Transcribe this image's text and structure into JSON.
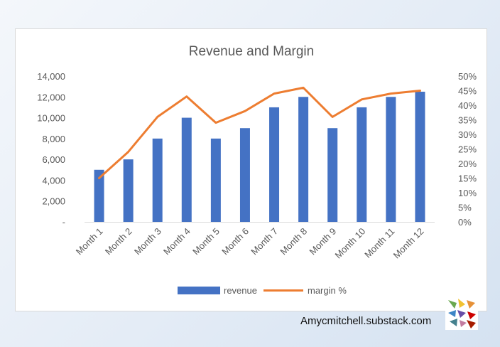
{
  "chart_data": {
    "type": "bar",
    "title": "Revenue and Margin",
    "categories": [
      "Month 1",
      "Month 2",
      "Month 3",
      "Month 4",
      "Month 5",
      "Month 6",
      "Month 7",
      "Month 8",
      "Month 9",
      "Month 10",
      "Month 11",
      "Month 12"
    ],
    "series": [
      {
        "name": "revenue",
        "type": "bar",
        "axis": "left",
        "color": "#4472c4",
        "values": [
          5000,
          6000,
          8000,
          10000,
          8000,
          9000,
          11000,
          12000,
          9000,
          11000,
          12000,
          12500
        ]
      },
      {
        "name": "margin %",
        "type": "line",
        "axis": "right",
        "color": "#ed7d31",
        "values": [
          15,
          24,
          36,
          43,
          34,
          38,
          44,
          46,
          36,
          42,
          44,
          45
        ]
      }
    ],
    "y_left": {
      "min": 0,
      "max": 14000,
      "step": 2000,
      "tick_labels": [
        "-",
        "2,000",
        "4,000",
        "6,000",
        "8,000",
        "10,000",
        "12,000",
        "14,000"
      ]
    },
    "y_right": {
      "min": 0,
      "max": 50,
      "step": 5,
      "tick_labels": [
        "0%",
        "5%",
        "10%",
        "15%",
        "20%",
        "25%",
        "30%",
        "35%",
        "40%",
        "45%",
        "50%"
      ]
    },
    "grid": false,
    "legend_position": "bottom"
  },
  "credit_text": "Amycmitchell.substack.com",
  "logo_icon": "colorful-hands-logo"
}
